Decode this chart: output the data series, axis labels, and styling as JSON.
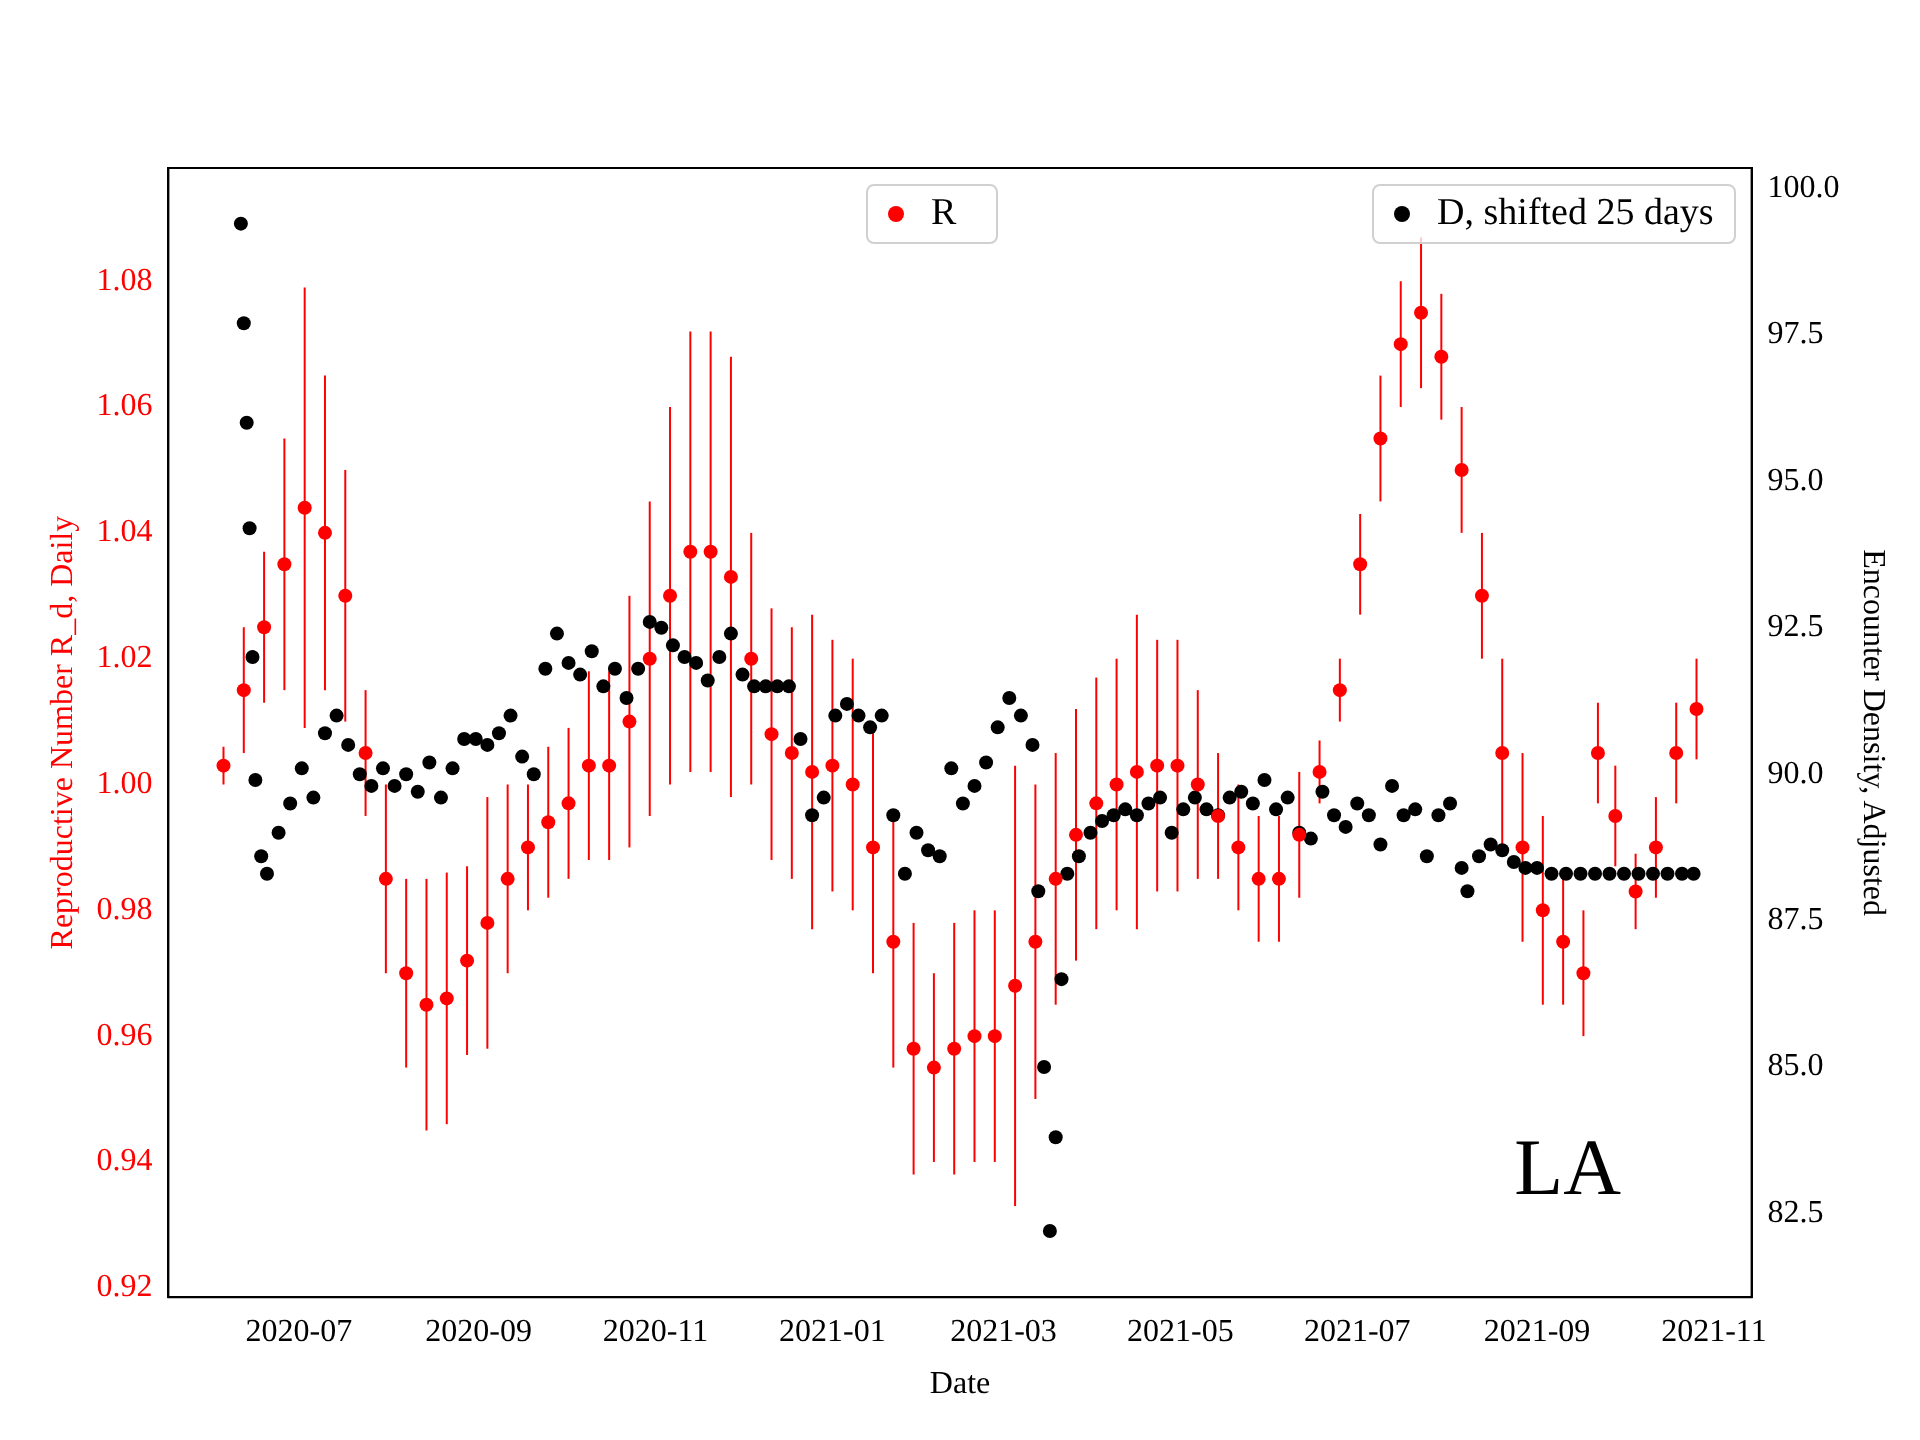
{
  "chart_data": {
    "type": "scatter",
    "xlabel": "Date",
    "ylabel": "Reproductive Number R_d, Daily",
    "y2label": "Encounter Density, Adjusted",
    "annotations": [
      "LA"
    ],
    "legend": "top right",
    "marker": "circle",
    "grid": false,
    "xlim": [
      "2020-05-17",
      "2021-11-14"
    ],
    "xticks": [
      "2020-07",
      "2020-09",
      "2020-11",
      "2021-01",
      "2021-03",
      "2021-05",
      "2021-07",
      "2021-09",
      "2021-11"
    ],
    "ylim": [
      0.9185,
      1.098
    ],
    "yticks": [
      0.92,
      0.94,
      0.96,
      0.98,
      {
        "value": 1,
        "label": "1.00"
      },
      1.02,
      1.04,
      1.06,
      1.08
    ],
    "y2lim": [
      81.07,
      100.35
    ],
    "y2ticks": [
      82.5,
      {
        "value": 85,
        "label": "85.0"
      },
      87.5,
      {
        "value": 90,
        "label": "90.0"
      },
      92.5,
      {
        "value": 95,
        "label": "95.0"
      },
      97.5,
      {
        "value": 100,
        "label": "100.0"
      }
    ],
    "series": [
      {
        "name": "R",
        "color": "#ff0000",
        "axis": "y",
        "x": [
          "2020-06-05",
          "2020-06-12",
          "2020-06-19",
          "2020-06-26",
          "2020-07-03",
          "2020-07-10",
          "2020-07-17",
          "2020-07-24",
          "2020-07-31",
          "2020-08-07",
          "2020-08-14",
          "2020-08-21",
          "2020-08-28",
          "2020-09-04",
          "2020-09-11",
          "2020-09-18",
          "2020-09-25",
          "2020-10-02",
          "2020-10-09",
          "2020-10-16",
          "2020-10-23",
          "2020-10-30",
          "2020-11-06",
          "2020-11-13",
          "2020-11-20",
          "2020-11-27",
          "2020-12-04",
          "2020-12-11",
          "2020-12-18",
          "2020-12-25",
          "2021-01-01",
          "2021-01-08",
          "2021-01-15",
          "2021-01-22",
          "2021-01-29",
          "2021-02-05",
          "2021-02-12",
          "2021-02-19",
          "2021-02-26",
          "2021-03-05",
          "2021-03-12",
          "2021-03-19",
          "2021-03-26",
          "2021-04-02",
          "2021-04-09",
          "2021-04-16",
          "2021-04-23",
          "2021-04-30",
          "2021-05-07",
          "2021-05-14",
          "2021-05-21",
          "2021-05-28",
          "2021-06-04",
          "2021-06-11",
          "2021-06-18",
          "2021-06-25",
          "2021-07-02",
          "2021-07-09",
          "2021-07-16",
          "2021-07-23",
          "2021-07-30",
          "2021-08-06",
          "2021-08-13",
          "2021-08-20",
          "2021-08-27",
          "2021-09-03",
          "2021-09-10",
          "2021-09-17",
          "2021-09-22",
          "2021-09-28",
          "2021-10-05",
          "2021-10-12",
          "2021-10-19",
          "2021-10-26"
        ],
        "values": [
          1.003,
          1.015,
          1.025,
          1.035,
          1.044,
          1.04,
          1.03,
          1.005,
          0.985,
          0.97,
          0.965,
          0.966,
          0.972,
          0.978,
          0.985,
          0.99,
          0.994,
          0.997,
          1.003,
          1.003,
          1.01,
          1.02,
          1.03,
          1.037,
          1.037,
          1.033,
          1.02,
          1.008,
          1.005,
          1.002,
          1.003,
          1.0,
          0.99,
          0.975,
          0.958,
          0.955,
          0.958,
          0.96,
          0.96,
          0.968,
          0.975,
          0.985,
          0.992,
          0.997,
          1.0,
          1.002,
          1.003,
          1.003,
          1.0,
          0.995,
          0.99,
          0.985,
          0.985,
          0.992,
          1.002,
          1.015,
          1.035,
          1.055,
          1.07,
          1.075,
          1.068,
          1.05,
          1.03,
          1.005,
          0.99,
          0.98,
          0.975,
          0.97,
          1.005,
          0.995,
          0.983,
          0.99,
          1.005,
          1.012
        ],
        "errors": [
          0.003,
          0.01,
          0.012,
          0.02,
          0.035,
          0.025,
          0.02,
          0.01,
          0.015,
          0.015,
          0.02,
          0.02,
          0.015,
          0.02,
          0.015,
          0.01,
          0.012,
          0.012,
          0.015,
          0.015,
          0.02,
          0.025,
          0.03,
          0.035,
          0.035,
          0.035,
          0.02,
          0.02,
          0.02,
          0.025,
          0.02,
          0.02,
          0.02,
          0.02,
          0.02,
          0.015,
          0.02,
          0.02,
          0.02,
          0.035,
          0.025,
          0.02,
          0.02,
          0.02,
          0.02,
          0.025,
          0.02,
          0.02,
          0.015,
          0.01,
          0.01,
          0.01,
          0.01,
          0.01,
          0.005,
          0.005,
          0.008,
          0.01,
          0.01,
          0.012,
          0.01,
          0.01,
          0.01,
          0.015,
          0.015,
          0.015,
          0.01,
          0.01,
          0.008,
          0.008,
          0.006,
          0.008,
          0.008,
          0.008
        ]
      },
      {
        "name": "D, shifted 25 days",
        "color": "#000000",
        "axis": "y2",
        "x": [
          "2020-06-11",
          "2020-06-12",
          "2020-06-13",
          "2020-06-14",
          "2020-06-15",
          "2020-06-16",
          "2020-06-18",
          "2020-06-20",
          "2020-06-24",
          "2020-06-28",
          "2020-07-02",
          "2020-07-06",
          "2020-07-10",
          "2020-07-14",
          "2020-07-18",
          "2020-07-22",
          "2020-07-26",
          "2020-07-30",
          "2020-08-03",
          "2020-08-07",
          "2020-08-11",
          "2020-08-15",
          "2020-08-19",
          "2020-08-23",
          "2020-08-27",
          "2020-08-31",
          "2020-09-04",
          "2020-09-08",
          "2020-09-12",
          "2020-09-16",
          "2020-09-20",
          "2020-09-24",
          "2020-09-28",
          "2020-10-02",
          "2020-10-06",
          "2020-10-10",
          "2020-10-14",
          "2020-10-18",
          "2020-10-22",
          "2020-10-26",
          "2020-10-30",
          "2020-11-03",
          "2020-11-07",
          "2020-11-11",
          "2020-11-15",
          "2020-11-19",
          "2020-11-23",
          "2020-11-27",
          "2020-12-01",
          "2020-12-05",
          "2020-12-09",
          "2020-12-13",
          "2020-12-17",
          "2020-12-21",
          "2020-12-25",
          "2020-12-29",
          "2021-01-02",
          "2021-01-06",
          "2021-01-10",
          "2021-01-14",
          "2021-01-18",
          "2021-01-22",
          "2021-01-26",
          "2021-01-30",
          "2021-02-03",
          "2021-02-07",
          "2021-02-11",
          "2021-02-15",
          "2021-02-19",
          "2021-02-23",
          "2021-02-27",
          "2021-03-03",
          "2021-03-07",
          "2021-03-11",
          "2021-03-13",
          "2021-03-15",
          "2021-03-17",
          "2021-03-19",
          "2021-03-21",
          "2021-03-23",
          "2021-03-27",
          "2021-03-31",
          "2021-04-04",
          "2021-04-08",
          "2021-04-12",
          "2021-04-16",
          "2021-04-20",
          "2021-04-24",
          "2021-04-28",
          "2021-05-02",
          "2021-05-06",
          "2021-05-10",
          "2021-05-14",
          "2021-05-18",
          "2021-05-22",
          "2021-05-26",
          "2021-05-30",
          "2021-06-03",
          "2021-06-07",
          "2021-06-11",
          "2021-06-15",
          "2021-06-19",
          "2021-06-23",
          "2021-06-27",
          "2021-07-01",
          "2021-07-05",
          "2021-07-09",
          "2021-07-13",
          "2021-07-17",
          "2021-07-21",
          "2021-07-25",
          "2021-07-29",
          "2021-08-02",
          "2021-08-06",
          "2021-08-08",
          "2021-08-12",
          "2021-08-16",
          "2021-08-20",
          "2021-08-24",
          "2021-08-28",
          "2021-09-01",
          "2021-09-06",
          "2021-09-11",
          "2021-09-16",
          "2021-09-21",
          "2021-09-26",
          "2021-10-01",
          "2021-10-06",
          "2021-10-11",
          "2021-10-16",
          "2021-10-21",
          "2021-10-25"
        ],
        "values": [
          99.4,
          97.7,
          96.0,
          94.2,
          92.0,
          89.9,
          88.6,
          88.3,
          89.0,
          89.5,
          90.1,
          89.6,
          90.7,
          91.0,
          90.5,
          90.0,
          89.8,
          90.1,
          89.8,
          90.0,
          89.7,
          90.2,
          89.6,
          90.1,
          90.6,
          90.6,
          90.5,
          90.7,
          91.0,
          90.3,
          90.0,
          91.8,
          92.4,
          91.9,
          91.7,
          92.1,
          91.5,
          91.8,
          91.3,
          91.8,
          92.6,
          92.5,
          92.2,
          92.0,
          91.9,
          91.6,
          92.0,
          92.4,
          91.7,
          91.5,
          91.5,
          91.5,
          91.5,
          90.6,
          89.3,
          89.6,
          91.0,
          91.2,
          91.0,
          90.8,
          91.0,
          89.3,
          88.3,
          89.0,
          88.7,
          88.6,
          90.1,
          89.5,
          89.8,
          90.2,
          90.8,
          91.3,
          91.0,
          90.5,
          88.0,
          85.0,
          82.2,
          83.8,
          86.5,
          88.3,
          88.6,
          89.0,
          89.2,
          89.3,
          89.4,
          89.3,
          89.5,
          89.6,
          89.0,
          89.4,
          89.6,
          89.4,
          89.3,
          89.6,
          89.7,
          89.5,
          89.9,
          89.4,
          89.6,
          89.0,
          88.9,
          89.7,
          89.3,
          89.1,
          89.5,
          89.3,
          88.8,
          89.8,
          89.3,
          89.4,
          88.6,
          89.3,
          89.5,
          88.4,
          88.0,
          88.6,
          88.8,
          88.7,
          88.5,
          88.4,
          88.4,
          88.3,
          88.3,
          88.3,
          88.3,
          88.3,
          88.3,
          88.3,
          88.3,
          88.3,
          88.3,
          88.3
        ]
      }
    ]
  }
}
